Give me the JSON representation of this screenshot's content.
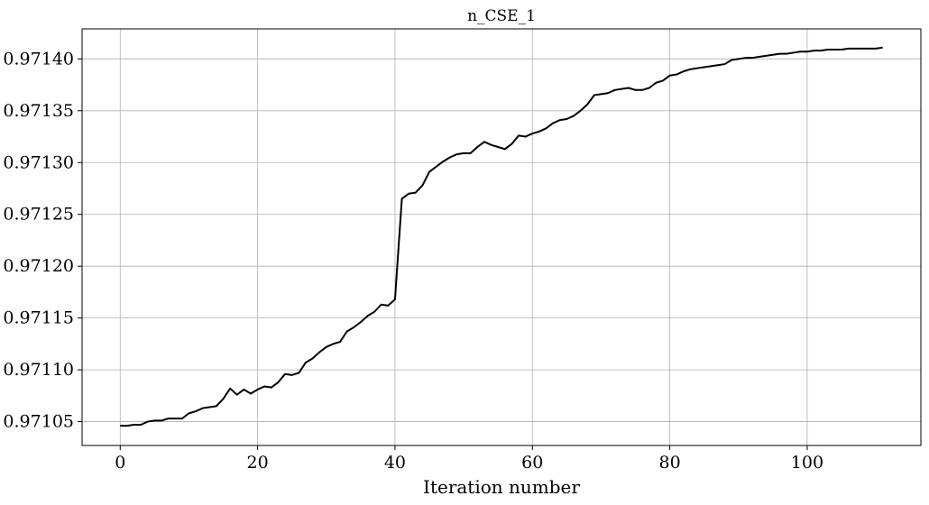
{
  "chart_data": {
    "type": "line",
    "title": "n_CSE_1",
    "xlabel": "Iteration number",
    "ylabel": "",
    "xlim": [
      -5.55,
      116.55
    ],
    "ylim": [
      0.971027,
      0.971429
    ],
    "x_ticks": [
      0,
      20,
      40,
      60,
      80,
      100
    ],
    "x_tick_labels": [
      "0",
      "20",
      "40",
      "60",
      "80",
      "100"
    ],
    "y_ticks": [
      0.97105,
      0.9711,
      0.97115,
      0.9712,
      0.97125,
      0.9713,
      0.97135,
      0.9714
    ],
    "y_tick_labels": [
      "0.97105",
      "0.97110",
      "0.97115",
      "0.97120",
      "0.97125",
      "0.97130",
      "0.97135",
      "0.97140"
    ],
    "grid": true,
    "line_color": "#000000",
    "series": [
      {
        "values": [
          0.971046,
          0.971046,
          0.971047,
          0.971047,
          0.97105,
          0.971051,
          0.971051,
          0.971053,
          0.971053,
          0.971053,
          0.971058,
          0.97106,
          0.971063,
          0.971064,
          0.971065,
          0.971072,
          0.971082,
          0.971076,
          0.971081,
          0.971077,
          0.971081,
          0.971084,
          0.971083,
          0.971088,
          0.971096,
          0.971095,
          0.971097,
          0.971107,
          0.971111,
          0.971117,
          0.971122,
          0.971125,
          0.971127,
          0.971137,
          0.971141,
          0.971146,
          0.971152,
          0.971156,
          0.971163,
          0.971162,
          0.971168,
          0.971265,
          0.97127,
          0.971271,
          0.971278,
          0.971291,
          0.971296,
          0.971301,
          0.971305,
          0.971308,
          0.971309,
          0.971309,
          0.971315,
          0.97132,
          0.971317,
          0.971315,
          0.971313,
          0.971318,
          0.971326,
          0.971325,
          0.971328,
          0.97133,
          0.971333,
          0.971338,
          0.971341,
          0.971342,
          0.971345,
          0.97135,
          0.971356,
          0.971365,
          0.971366,
          0.971367,
          0.97137,
          0.971371,
          0.971372,
          0.97137,
          0.97137,
          0.971372,
          0.971377,
          0.971379,
          0.971384,
          0.971385,
          0.971388,
          0.97139,
          0.971391,
          0.971392,
          0.971393,
          0.971394,
          0.971395,
          0.971399,
          0.9714,
          0.971401,
          0.971401,
          0.971402,
          0.971403,
          0.971404,
          0.971405,
          0.971405,
          0.971406,
          0.971407,
          0.971407,
          0.971408,
          0.971408,
          0.971409,
          0.971409,
          0.971409,
          0.97141,
          0.97141,
          0.97141,
          0.97141,
          0.97141,
          0.971411
        ]
      }
    ]
  }
}
